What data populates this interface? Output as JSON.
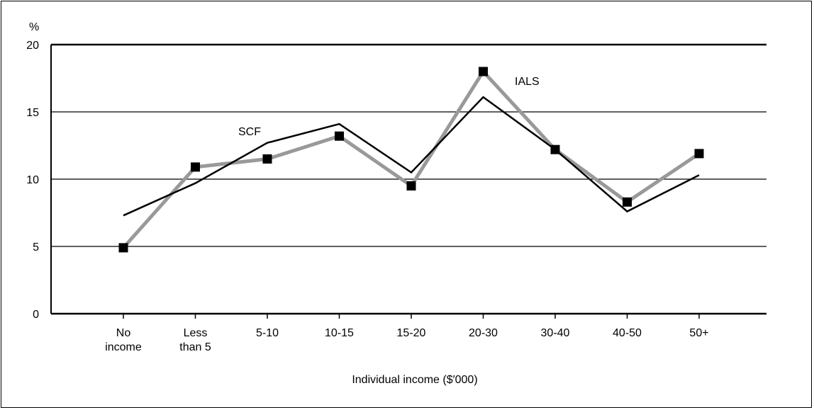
{
  "chart_data": {
    "type": "line",
    "ylabel": "%",
    "xlabel": "Individual income ($′000)",
    "categories": [
      [
        "No",
        "income"
      ],
      [
        "Less",
        "than 5"
      ],
      [
        "5-10"
      ],
      [
        "10-15"
      ],
      [
        "15-20"
      ],
      [
        "20-30"
      ],
      [
        "30-40"
      ],
      [
        "40-50"
      ],
      [
        "50+"
      ]
    ],
    "ylim": [
      0,
      20
    ],
    "yticks": [
      "0",
      "5",
      "10",
      "15",
      "20"
    ],
    "grid": true,
    "series": [
      {
        "name": "SCF",
        "color": "#000000",
        "markers": false,
        "values": [
          7.3,
          9.7,
          12.7,
          14.1,
          10.5,
          16.1,
          12.2,
          7.6,
          10.3
        ]
      },
      {
        "name": "IALS",
        "color": "#999999",
        "markers": true,
        "marker_color": "#000000",
        "values": [
          4.9,
          10.9,
          11.5,
          13.2,
          9.5,
          18.0,
          12.2,
          8.3,
          11.9
        ]
      }
    ]
  }
}
